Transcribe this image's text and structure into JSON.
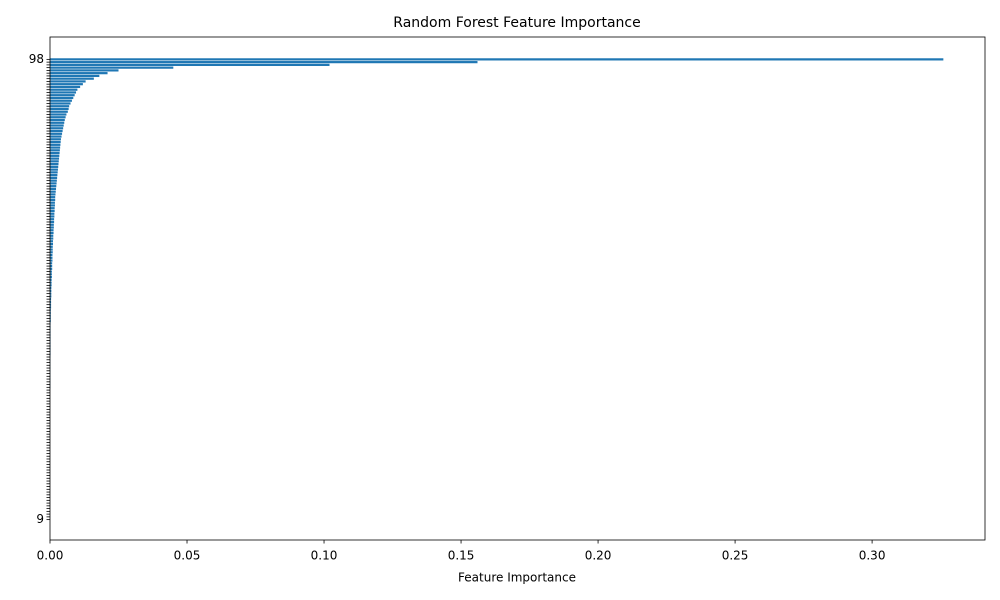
{
  "chart_data": {
    "type": "barh",
    "title": "Random Forest Feature Importance",
    "x_label": "Feature Importance",
    "color": "#1f77b4",
    "categories": [
      "98",
      null,
      null,
      null,
      null,
      null,
      null,
      null,
      null,
      null,
      null,
      null,
      null,
      null,
      null,
      null,
      null,
      null,
      null,
      null,
      null,
      null,
      null,
      null,
      null,
      null,
      null,
      null,
      null,
      null,
      null,
      null,
      null,
      null,
      null,
      null,
      null,
      null,
      null,
      null,
      null,
      null,
      null,
      null,
      null,
      null,
      null,
      null,
      null,
      null,
      null,
      null,
      null,
      null,
      null,
      null,
      null,
      null,
      null,
      null,
      null,
      null,
      null,
      null,
      null,
      null,
      null,
      null,
      null,
      null,
      null,
      null,
      null,
      null,
      null,
      null,
      null,
      null,
      null,
      null,
      null,
      null,
      null,
      null,
      null,
      null,
      null,
      null,
      null,
      null,
      null,
      null,
      null,
      null,
      null,
      null,
      null,
      null,
      null,
      null,
      null,
      null,
      null,
      null,
      null,
      null,
      null,
      null,
      null,
      null,
      null,
      null,
      null,
      null,
      null,
      null,
      null,
      null,
      null,
      null,
      null,
      null,
      null,
      null,
      null,
      null,
      null,
      null,
      null,
      null,
      null,
      null,
      null,
      null,
      null,
      null,
      null,
      null,
      null,
      null,
      null,
      null,
      null,
      null,
      null,
      null,
      null,
      null,
      null,
      null,
      null,
      null,
      null,
      null,
      null,
      null,
      null,
      null,
      null,
      null,
      null,
      null,
      null,
      null,
      null,
      null,
      null,
      "9"
    ],
    "values": [
      0.326,
      0.156,
      0.102,
      0.045,
      0.025,
      0.021,
      0.018,
      0.016,
      0.013,
      0.012,
      0.011,
      0.01,
      0.0095,
      0.009,
      0.0085,
      0.008,
      0.0075,
      0.007,
      0.0068,
      0.0065,
      0.006,
      0.0057,
      0.0054,
      0.0052,
      0.005,
      0.0048,
      0.0046,
      0.0044,
      0.0042,
      0.004,
      0.0039,
      0.0038,
      0.0037,
      0.0036,
      0.0035,
      0.0034,
      0.0033,
      0.0032,
      0.0031,
      0.003,
      0.0029,
      0.0028,
      0.0027,
      0.0026,
      0.0025,
      0.0024,
      0.0023,
      0.0022,
      0.0021,
      0.002,
      0.0019,
      0.0019,
      0.0018,
      0.0018,
      0.0017,
      0.0017,
      0.0016,
      0.0016,
      0.0015,
      0.0015,
      0.0014,
      0.0014,
      0.0013,
      0.0013,
      0.0012,
      0.0012,
      0.0011,
      0.0011,
      0.001,
      0.001,
      0.001,
      0.0009,
      0.0009,
      0.0009,
      0.0008,
      0.0008,
      0.0008,
      0.0007,
      0.0007,
      0.0007,
      0.0006,
      0.0006,
      0.0006,
      0.0005,
      0.0005,
      0.0005,
      0.0005,
      0.0004,
      0.0004,
      0.0004,
      0.0004,
      0.0003,
      0.0003,
      0.0003,
      0.0003,
      0.0003,
      0.0002,
      0.0002,
      0.0002,
      0.0002,
      0.0002,
      0.0002,
      0.0002,
      0.0002,
      0.0002,
      0.0002,
      0.0002,
      0.0002,
      0.0001,
      0.0001,
      0.0001,
      0.0001,
      0.0001,
      0.0001,
      0.0001,
      0.0001,
      0.0001,
      0.0001,
      0.0001,
      0.0001,
      0,
      0,
      0,
      0,
      0,
      0,
      0,
      0,
      0,
      0,
      0,
      0,
      0,
      0,
      0,
      0,
      0,
      0,
      0,
      0,
      0,
      0,
      0,
      0,
      0,
      0,
      0,
      0,
      0,
      0,
      0,
      0,
      0,
      0,
      0,
      0,
      0,
      0,
      0,
      0,
      0,
      0,
      0,
      0,
      0,
      0,
      0,
      0
    ],
    "xlim": [
      0,
      0.3412
    ],
    "xticks": [
      {
        "value": 0,
        "label": "0.00"
      },
      {
        "value": 0.05,
        "label": "0.05"
      },
      {
        "value": 0.1,
        "label": "0.10"
      },
      {
        "value": 0.15,
        "label": "0.15"
      },
      {
        "value": 0.2,
        "label": "0.20"
      },
      {
        "value": 0.25,
        "label": "0.25"
      },
      {
        "value": 0.3,
        "label": "0.30"
      }
    ]
  }
}
